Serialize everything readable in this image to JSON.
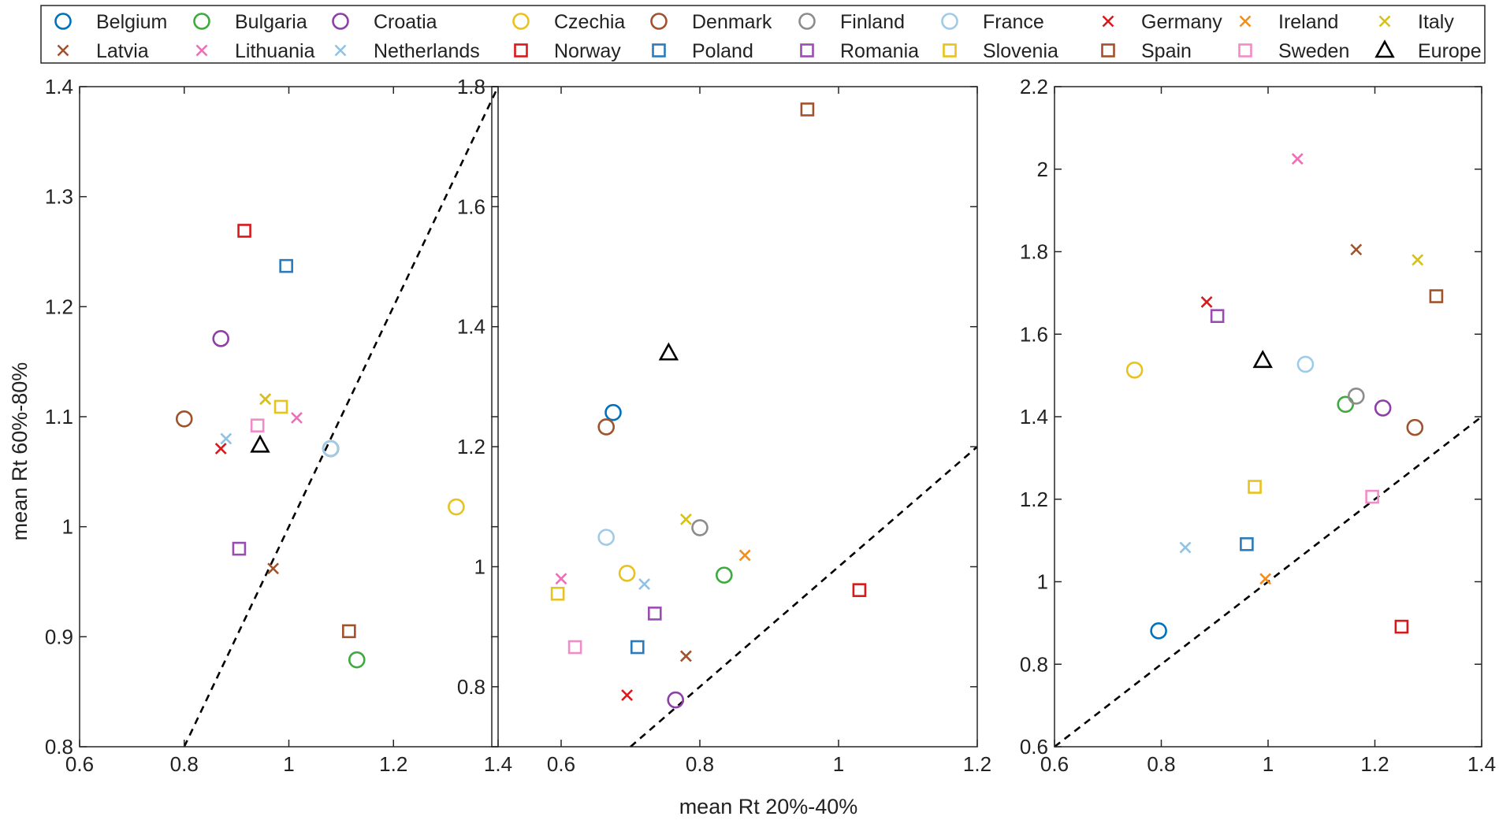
{
  "chart_data": {
    "type": "scatter",
    "xlabel": "mean Rt 20%-40%",
    "ylabel": "mean Rt 60%-80%",
    "legend": {
      "placement": "top",
      "entries": [
        {
          "name": "Belgium",
          "marker": "circle",
          "color": "#0072BD"
        },
        {
          "name": "Bulgaria",
          "marker": "circle",
          "color": "#3DAA3D"
        },
        {
          "name": "Croatia",
          "marker": "circle",
          "color": "#8E3FA6"
        },
        {
          "name": "Czechia",
          "marker": "circle",
          "color": "#E8C21F"
        },
        {
          "name": "Denmark",
          "marker": "circle",
          "color": "#A0522D"
        },
        {
          "name": "Finland",
          "marker": "circle",
          "color": "#8C8C8C"
        },
        {
          "name": "France",
          "marker": "circle",
          "color": "#9FCBE8"
        },
        {
          "name": "Germany",
          "marker": "x",
          "color": "#D7191C"
        },
        {
          "name": "Ireland",
          "marker": "x",
          "color": "#F28E1C"
        },
        {
          "name": "Italy",
          "marker": "x",
          "color": "#D4C21A"
        },
        {
          "name": "Latvia",
          "marker": "x",
          "color": "#A0522D"
        },
        {
          "name": "Lithuania",
          "marker": "x",
          "color": "#F06EB8"
        },
        {
          "name": "Netherlands",
          "marker": "x",
          "color": "#8FC3E6"
        },
        {
          "name": "Norway",
          "marker": "square",
          "color": "#D7191C"
        },
        {
          "name": "Poland",
          "marker": "square",
          "color": "#2B7BBA"
        },
        {
          "name": "Romania",
          "marker": "square",
          "color": "#9A4DB0"
        },
        {
          "name": "Slovenia",
          "marker": "square",
          "color": "#E8C21F"
        },
        {
          "name": "Spain",
          "marker": "square",
          "color": "#A0522D"
        },
        {
          "name": "Sweden",
          "marker": "square",
          "color": "#F28CC8"
        },
        {
          "name": "Europe",
          "marker": "triangle",
          "color": "#000000"
        }
      ]
    },
    "panels": [
      {
        "xlim": [
          0.6,
          1.4
        ],
        "ylim": [
          0.8,
          1.4
        ],
        "xticks": [
          "0.6",
          "0.8",
          "1",
          "1.2",
          "1.4"
        ],
        "yticks": [
          "0.8",
          "0.9",
          "1",
          "1.1",
          "1.2",
          "1.3",
          "1.4"
        ],
        "diagonal": [
          [
            0.8,
            0.8
          ],
          [
            1.4,
            1.4
          ]
        ],
        "points": [
          {
            "name": "Belgium",
            "x": 1.08,
            "y": 1.071
          },
          {
            "name": "Bulgaria",
            "x": 1.13,
            "y": 0.879
          },
          {
            "name": "Croatia",
            "x": 0.87,
            "y": 1.171
          },
          {
            "name": "Czechia",
            "x": 1.32,
            "y": 1.018
          },
          {
            "name": "Denmark",
            "x": 0.8,
            "y": 1.098
          },
          {
            "name": "Finland",
            "x": 1.08,
            "y": 1.071
          },
          {
            "name": "France",
            "x": 1.08,
            "y": 1.071
          },
          {
            "name": "Germany",
            "x": 0.87,
            "y": 1.071
          },
          {
            "name": "Ireland",
            "x": 0.955,
            "y": 1.116
          },
          {
            "name": "Italy",
            "x": 0.955,
            "y": 1.116
          },
          {
            "name": "Latvia",
            "x": 0.97,
            "y": 0.962
          },
          {
            "name": "Lithuania",
            "x": 1.015,
            "y": 1.099
          },
          {
            "name": "Netherlands",
            "x": 0.88,
            "y": 1.08
          },
          {
            "name": "Norway",
            "x": 0.915,
            "y": 1.269
          },
          {
            "name": "Poland",
            "x": 0.995,
            "y": 1.237
          },
          {
            "name": "Romania",
            "x": 0.905,
            "y": 0.98
          },
          {
            "name": "Slovenia",
            "x": 0.985,
            "y": 1.109
          },
          {
            "name": "Spain",
            "x": 1.115,
            "y": 0.905
          },
          {
            "name": "Sweden",
            "x": 0.94,
            "y": 1.092
          },
          {
            "name": "Europe",
            "x": 0.945,
            "y": 1.074
          }
        ]
      },
      {
        "xlim": [
          0.5,
          1.2
        ],
        "ylim": [
          0.7,
          1.8
        ],
        "xticks": [
          "0.6",
          "0.8",
          "1",
          "1.2"
        ],
        "yticks": [
          "0.8",
          "1",
          "1.2",
          "1.4",
          "1.6",
          "1.8"
        ],
        "diagonal": [
          [
            0.7,
            0.7
          ],
          [
            1.2,
            1.2
          ]
        ],
        "points": [
          {
            "name": "Belgium",
            "x": 0.675,
            "y": 1.257
          },
          {
            "name": "Bulgaria",
            "x": 0.835,
            "y": 0.986
          },
          {
            "name": "Croatia",
            "x": 0.765,
            "y": 0.778
          },
          {
            "name": "Czechia",
            "x": 0.695,
            "y": 0.989
          },
          {
            "name": "Denmark",
            "x": 0.665,
            "y": 1.233
          },
          {
            "name": "Finland",
            "x": 0.8,
            "y": 1.065
          },
          {
            "name": "France",
            "x": 0.665,
            "y": 1.049
          },
          {
            "name": "Germany",
            "x": 0.695,
            "y": 0.786
          },
          {
            "name": "Ireland",
            "x": 0.865,
            "y": 1.019
          },
          {
            "name": "Italy",
            "x": 0.78,
            "y": 1.079
          },
          {
            "name": "Latvia",
            "x": 0.78,
            "y": 0.851
          },
          {
            "name": "Lithuania",
            "x": 0.6,
            "y": 0.98
          },
          {
            "name": "Netherlands",
            "x": 0.72,
            "y": 0.971
          },
          {
            "name": "Norway",
            "x": 1.03,
            "y": 0.961
          },
          {
            "name": "Poland",
            "x": 0.71,
            "y": 0.866
          },
          {
            "name": "Romania",
            "x": 0.735,
            "y": 0.922
          },
          {
            "name": "Slovenia",
            "x": 0.595,
            "y": 0.955
          },
          {
            "name": "Spain",
            "x": 0.955,
            "y": 1.762
          },
          {
            "name": "Sweden",
            "x": 0.62,
            "y": 0.866
          },
          {
            "name": "Europe",
            "x": 0.755,
            "y": 1.356
          }
        ]
      },
      {
        "xlim": [
          0.6,
          1.4
        ],
        "ylim": [
          0.6,
          2.2
        ],
        "xticks": [
          "0.6",
          "0.8",
          "1",
          "1.2",
          "1.4"
        ],
        "yticks": [
          "0.6",
          "0.8",
          "1",
          "1.2",
          "1.4",
          "1.6",
          "1.8",
          "2",
          "2.2"
        ],
        "diagonal": [
          [
            0.6,
            0.6
          ],
          [
            1.4,
            1.4
          ]
        ],
        "points": [
          {
            "name": "Belgium",
            "x": 0.795,
            "y": 0.881
          },
          {
            "name": "Bulgaria",
            "x": 1.145,
            "y": 1.43
          },
          {
            "name": "Croatia",
            "x": 1.215,
            "y": 1.421
          },
          {
            "name": "Czechia",
            "x": 0.75,
            "y": 1.513
          },
          {
            "name": "Denmark",
            "x": 1.275,
            "y": 1.374
          },
          {
            "name": "Finland",
            "x": 1.165,
            "y": 1.45
          },
          {
            "name": "France",
            "x": 1.07,
            "y": 1.527
          },
          {
            "name": "Germany",
            "x": 0.885,
            "y": 1.678
          },
          {
            "name": "Ireland",
            "x": 0.995,
            "y": 1.007
          },
          {
            "name": "Italy",
            "x": 1.28,
            "y": 1.78
          },
          {
            "name": "Latvia",
            "x": 1.165,
            "y": 1.805
          },
          {
            "name": "Lithuania",
            "x": 1.055,
            "y": 2.025
          },
          {
            "name": "Netherlands",
            "x": 0.845,
            "y": 1.083
          },
          {
            "name": "Norway",
            "x": 1.25,
            "y": 0.891
          },
          {
            "name": "Poland",
            "x": 0.96,
            "y": 1.091
          },
          {
            "name": "Romania",
            "x": 0.905,
            "y": 1.644
          },
          {
            "name": "Slovenia",
            "x": 0.975,
            "y": 1.23
          },
          {
            "name": "Spain",
            "x": 1.315,
            "y": 1.692
          },
          {
            "name": "Sweden",
            "x": 1.195,
            "y": 1.206
          },
          {
            "name": "Europe",
            "x": 0.99,
            "y": 1.536
          }
        ]
      }
    ]
  }
}
